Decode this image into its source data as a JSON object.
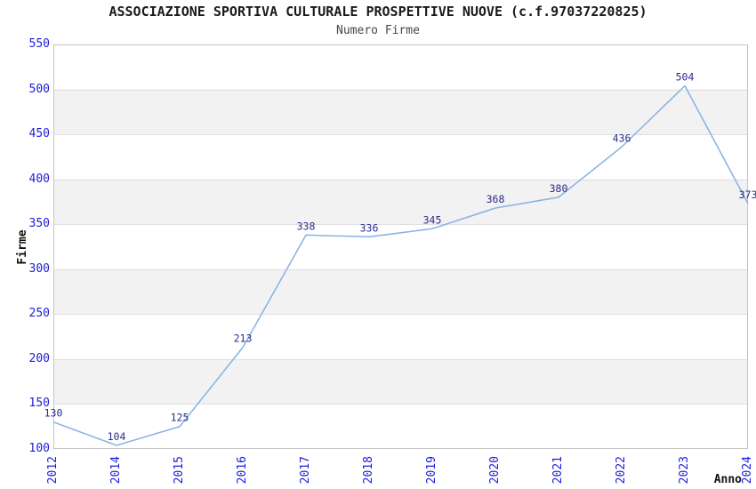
{
  "chart_data": {
    "type": "line",
    "title": "ASSOCIAZIONE SPORTIVA CULTURALE PROSPETTIVE NUOVE (c.f.97037220825)",
    "subtitle": "Numero Firme",
    "xlabel": "Anno",
    "ylabel": "Firme",
    "categories": [
      "2012",
      "2014",
      "2015",
      "2016",
      "2017",
      "2018",
      "2019",
      "2020",
      "2021",
      "2022",
      "2023",
      "2024"
    ],
    "values": [
      130,
      104,
      125,
      213,
      338,
      336,
      345,
      368,
      380,
      436,
      504,
      373
    ],
    "ylim": [
      100,
      550
    ],
    "ytick_step": 50,
    "grid": "horizontal-bands",
    "legend": "none",
    "colors": {
      "line": "#85b2e3",
      "point_label": "#2b2b8f",
      "tick_label": "#1c1ce0",
      "band": "#f2f2f2",
      "gridline": "#e0e0e0",
      "border": "#c4c4c4",
      "title": "#1a1a1a",
      "subtitle": "#474747",
      "axis_title": "#111111"
    }
  }
}
